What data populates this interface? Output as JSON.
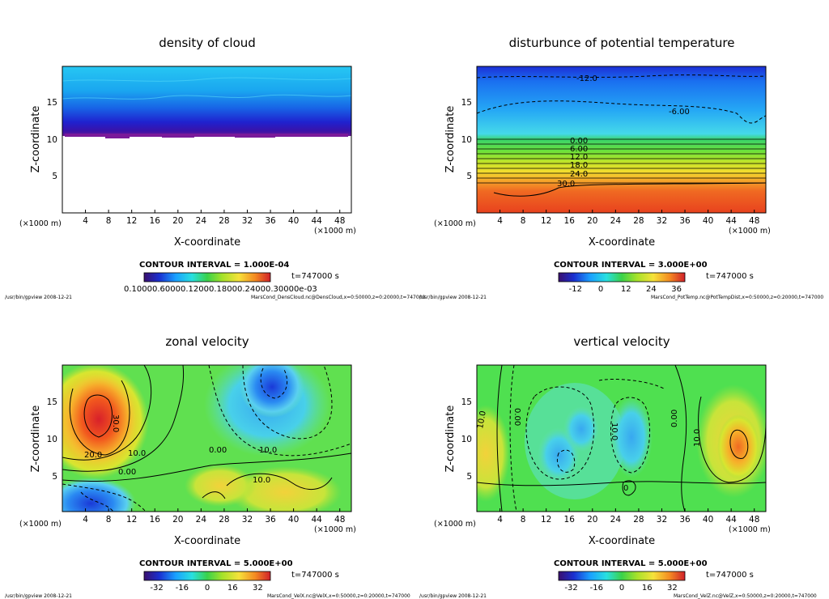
{
  "panels": [
    {
      "title": "density of cloud",
      "xlabel": "X-coordinate",
      "ylabel": "Z-coordinate",
      "x_scale": "(×1000 m)",
      "y_scale": "(×1000 m)",
      "xticks": [
        "4",
        "8",
        "12",
        "16",
        "20",
        "24",
        "28",
        "32",
        "36",
        "40",
        "44",
        "48"
      ],
      "yticks": [
        "5",
        "10",
        "15"
      ],
      "contour_interval": "CONTOUR INTERVAL = 1.000E-04",
      "time": "t=747000 s",
      "colorbar_labels": [
        "0.1000E-03",
        "0.2000E-03",
        "0.3000E-03"
      ],
      "colorbar_label_overlap": "0.10000.60000.12000.18000.24000.30000e-03",
      "footer_left": "/usr/bin/gpview   2008-12-21",
      "footer_right": "MarsCond_DensCloud.nc@DensCloud,x=0:50000,z=0:20000,t=747000",
      "contour_labels": []
    },
    {
      "title": "disturbunce of potential temperature",
      "xlabel": "X-coordinate",
      "ylabel": "Z-coordinate",
      "x_scale": "(×1000 m)",
      "y_scale": "(×1000 m)",
      "xticks": [
        "4",
        "8",
        "12",
        "16",
        "20",
        "24",
        "28",
        "32",
        "36",
        "40",
        "44",
        "48"
      ],
      "yticks": [
        "5",
        "10",
        "15"
      ],
      "contour_interval": "CONTOUR INTERVAL = 3.000E+00",
      "time": "t=747000 s",
      "colorbar_labels": [
        "-12",
        "0",
        "12",
        "24",
        "36"
      ],
      "footer_left": "/usr/bin/gpview   2008-12-21",
      "footer_right": "MarsCond_PotTemp.nc@PotTempDist,x=0:50000,z=0:20000,t=747000",
      "contour_labels": [
        "-12.0",
        "-6.00",
        "0.00",
        "6.00",
        "12.0",
        "18.0",
        "24.0",
        "30.0"
      ]
    },
    {
      "title": "zonal velocity",
      "xlabel": "X-coordinate",
      "ylabel": "Z-coordinate",
      "x_scale": "(×1000 m)",
      "y_scale": "(×1000 m)",
      "xticks": [
        "4",
        "8",
        "12",
        "16",
        "20",
        "24",
        "28",
        "32",
        "36",
        "40",
        "44",
        "48"
      ],
      "yticks": [
        "5",
        "10",
        "15"
      ],
      "contour_interval": "CONTOUR INTERVAL = 5.000E+00",
      "time": "t=747000 s",
      "colorbar_labels": [
        "-32",
        "-16",
        "0",
        "16",
        "32"
      ],
      "footer_left": "/usr/bin/gpview   2008-12-21",
      "footer_right": "MarsCond_VelX.nc@VelX,x=0:50000,z=0:20000,t=747000",
      "contour_labels": [
        "30.0",
        "20.0",
        "10.0",
        "0.00",
        "0.00",
        "10.0",
        "10.0"
      ]
    },
    {
      "title": "vertical velocity",
      "xlabel": "X-coordinate",
      "ylabel": "Z-coordinate",
      "x_scale": "(×1000 m)",
      "y_scale": "(×1000 m)",
      "xticks": [
        "4",
        "8",
        "12",
        "16",
        "20",
        "24",
        "28",
        "32",
        "36",
        "40",
        "44",
        "48"
      ],
      "yticks": [
        "5",
        "10",
        "15"
      ],
      "contour_interval": "CONTOUR INTERVAL = 5.000E+00",
      "time": "t=747000 s",
      "colorbar_labels": [
        "-32",
        "-16",
        "0",
        "16",
        "32"
      ],
      "footer_left": "/usr/bin/gpview   2008-12-21",
      "footer_right": "MarsCond_VelZ.nc@VelZ,x=0:50000,z=0:20000,t=747000",
      "contour_labels": [
        "10.0",
        "0.00",
        "10.0",
        "0.00",
        "10.0",
        "0"
      ]
    }
  ],
  "chart_data": [
    {
      "type": "heatmap",
      "title": "density of cloud",
      "xlabel": "X-coordinate",
      "ylabel": "Z-coordinate",
      "x_range": [
        0,
        50
      ],
      "y_range": [
        0,
        20
      ],
      "x_ticks": [
        4,
        8,
        12,
        16,
        20,
        24,
        28,
        32,
        36,
        40,
        44,
        48
      ],
      "y_ticks": [
        5,
        10,
        15
      ],
      "contour_interval": 0.0001,
      "colorbar_ticks": [
        0.0001,
        0.0002,
        0.0003
      ],
      "cloud_base_z": 11,
      "cloud_top_z": 20,
      "time_s": 747000
    },
    {
      "type": "heatmap",
      "title": "disturbunce of potential temperature",
      "xlabel": "X-coordinate",
      "ylabel": "Z-coordinate",
      "x_range": [
        0,
        50
      ],
      "y_range": [
        0,
        20
      ],
      "x_ticks": [
        4,
        8,
        12,
        16,
        20,
        24,
        28,
        32,
        36,
        40,
        44,
        48
      ],
      "y_ticks": [
        5,
        10,
        15
      ],
      "contour_interval": 3,
      "colorbar_ticks": [
        -12,
        0,
        12,
        24,
        36
      ],
      "contour_levels_labeled": [
        -12,
        -6,
        0,
        6,
        12,
        18,
        24,
        30
      ],
      "time_s": 747000
    },
    {
      "type": "heatmap",
      "title": "zonal velocity",
      "xlabel": "X-coordinate",
      "ylabel": "Z-coordinate",
      "x_range": [
        0,
        50
      ],
      "y_range": [
        0,
        20
      ],
      "x_ticks": [
        4,
        8,
        12,
        16,
        20,
        24,
        28,
        32,
        36,
        40,
        44,
        48
      ],
      "y_ticks": [
        5,
        10,
        15
      ],
      "contour_interval": 5,
      "colorbar_ticks": [
        -32,
        -16,
        0,
        16,
        32
      ],
      "contour_levels_labeled": [
        30,
        20,
        10,
        0,
        0,
        10,
        10
      ],
      "time_s": 747000
    },
    {
      "type": "heatmap",
      "title": "vertical velocity",
      "xlabel": "X-coordinate",
      "ylabel": "Z-coordinate",
      "x_range": [
        0,
        50
      ],
      "y_range": [
        0,
        20
      ],
      "x_ticks": [
        4,
        8,
        12,
        16,
        20,
        24,
        28,
        32,
        36,
        40,
        44,
        48
      ],
      "y_ticks": [
        5,
        10,
        15
      ],
      "contour_interval": 5,
      "colorbar_ticks": [
        -32,
        -16,
        0,
        16,
        32
      ],
      "contour_levels_labeled": [
        10,
        0,
        10,
        0,
        10,
        0
      ],
      "time_s": 747000
    }
  ]
}
